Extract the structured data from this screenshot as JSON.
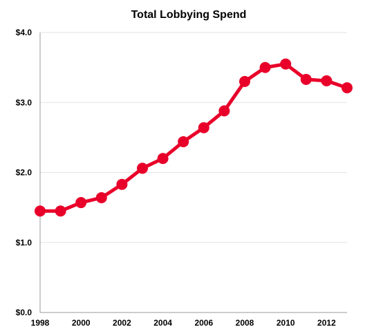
{
  "chart_data": {
    "type": "line",
    "title": "Total Lobbying Spend",
    "xlabel": "",
    "ylabel": "",
    "x": [
      1998,
      1999,
      2000,
      2001,
      2002,
      2003,
      2004,
      2005,
      2006,
      2007,
      2008,
      2009,
      2010,
      2011,
      2012,
      2013
    ],
    "series": [
      {
        "values": [
          1.45,
          1.45,
          1.57,
          1.64,
          1.83,
          2.06,
          2.2,
          2.44,
          2.64,
          2.88,
          3.3,
          3.5,
          3.55,
          3.33,
          3.31,
          3.21
        ]
      }
    ],
    "xlim": [
      1998,
      2013
    ],
    "ylim": [
      0,
      4
    ],
    "x_ticks": [
      "1998",
      "2000",
      "2002",
      "2004",
      "2006",
      "2008",
      "2010",
      "2012"
    ],
    "y_ticks": [
      "$0.0",
      "$1.0",
      "$2.0",
      "$3.0",
      "$4.0"
    ],
    "grid": true,
    "colors": {
      "series": "#e8002a",
      "grid": "#e3e3e3",
      "axis": "#9a9a9a"
    }
  }
}
